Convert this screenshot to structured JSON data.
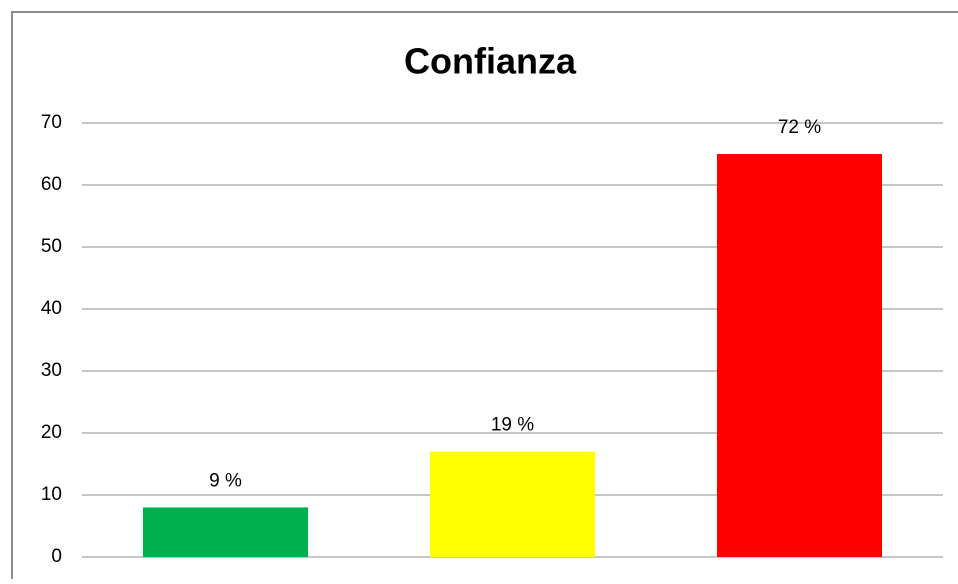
{
  "chart_data": {
    "type": "bar",
    "title": "Confianza",
    "categories": [
      null,
      null,
      null
    ],
    "values": [
      8,
      17,
      65
    ],
    "value_labels": [
      "9 %",
      "19 %",
      "72 %"
    ],
    "colors": [
      "#00b050",
      "#ffff00",
      "#ff0000"
    ],
    "ylim": [
      0,
      70
    ],
    "yticks": [
      0,
      10,
      20,
      30,
      40,
      50,
      60,
      70
    ],
    "grid": true
  }
}
